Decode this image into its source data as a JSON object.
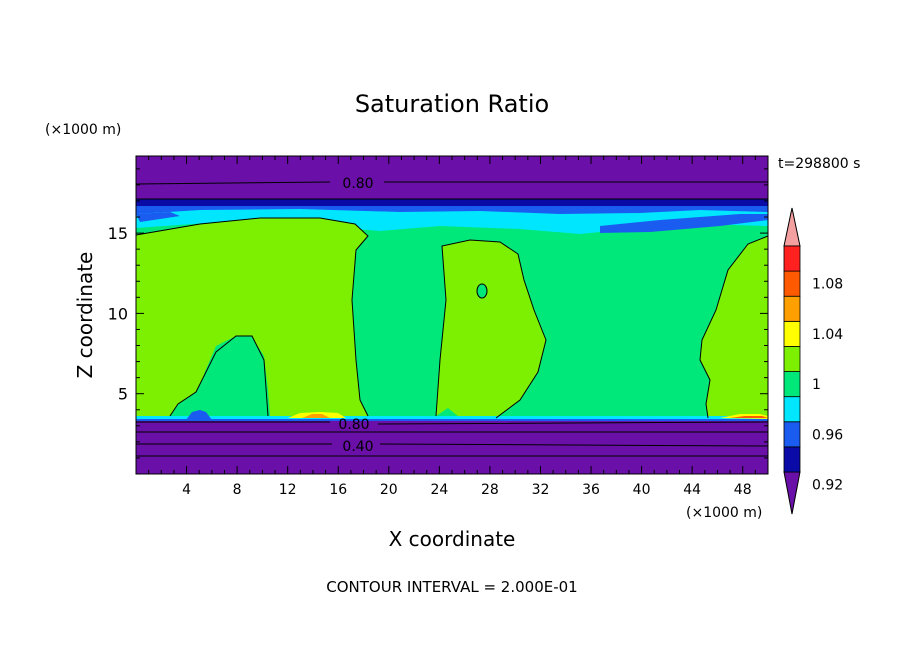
{
  "chart_data": {
    "type": "contour",
    "title": "Saturation Ratio",
    "xlabel": "X coordinate",
    "ylabel": "Z coordinate",
    "x_unit": "(×1000 m)",
    "y_unit": "(×1000 m)",
    "xlim": [
      0,
      50
    ],
    "ylim": [
      0,
      19.8
    ],
    "x_ticks": [
      4,
      8,
      12,
      16,
      20,
      24,
      28,
      32,
      36,
      40,
      44,
      48
    ],
    "y_ticks": [
      5,
      10,
      15
    ],
    "time_label": "t=298800 s",
    "footer": "CONTOUR INTERVAL = 2.000E-01",
    "contour_labels": [
      "0.80",
      "0.80",
      "0.40"
    ],
    "colorbar": {
      "levels": [
        0.92,
        0.94,
        0.96,
        0.98,
        1.0,
        1.02,
        1.04,
        1.06,
        1.08,
        1.1
      ],
      "tick_labels": [
        "0.92",
        "0.96",
        "1",
        "1.04",
        "1.08"
      ],
      "colors": [
        "#6a0fa8",
        "#0a0aa6",
        "#1a5cf0",
        "#00e6ff",
        "#00e87a",
        "#7cf000",
        "#ffff00",
        "#ffa000",
        "#ff5a00",
        "#ff2020",
        "#f4a0a0"
      ],
      "extends": "both"
    },
    "regions": [
      {
        "name": "upper-dry-band",
        "z_range": [
          17.2,
          19.8
        ],
        "level": "<0.92"
      },
      {
        "name": "near-saturation-layer",
        "z_range": [
          15.0,
          17.2
        ],
        "level": "0.92-0.98"
      },
      {
        "name": "mid-troposphere",
        "z_range": [
          3.5,
          15.0
        ],
        "level": "0.98-1.02"
      },
      {
        "name": "lower-dry-band",
        "z_range": [
          0,
          3.5
        ],
        "level": "<0.92"
      }
    ]
  },
  "colors": {
    "background": "#ffffff",
    "axis": "#000000",
    "contour_line": "#000000"
  }
}
